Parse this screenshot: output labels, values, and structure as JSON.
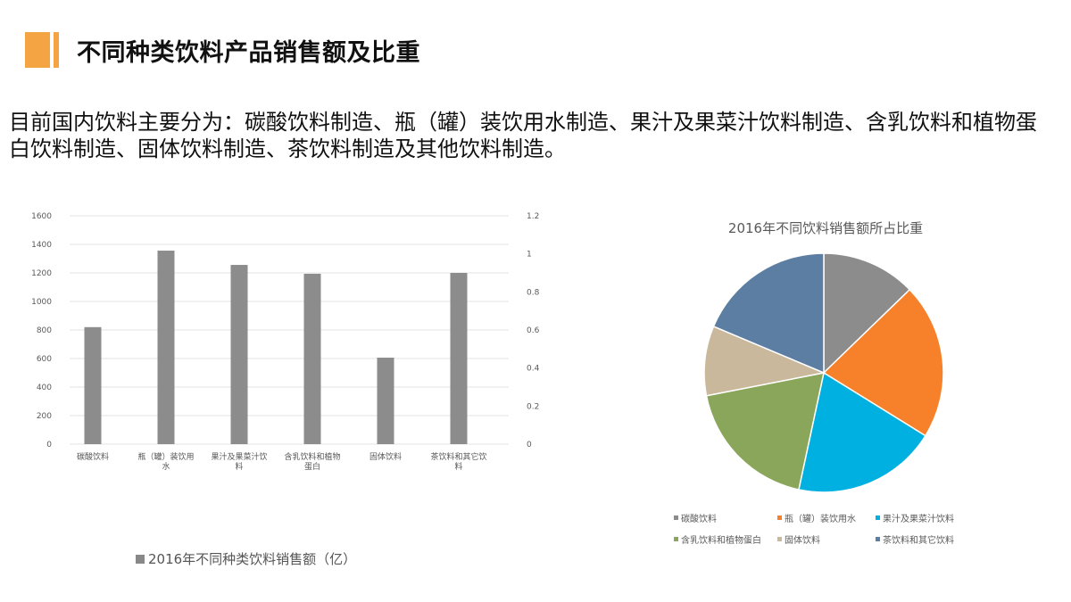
{
  "header": {
    "title": "不同种类饮料产品销售额及比重",
    "accent_color": "#f4a442"
  },
  "intro": {
    "text": "目前国内饮料主要分为：碳酸饮料制造、瓶（罐）装饮用水制造、果汁及果菜汁饮料制造、含乳饮料和植物蛋白饮料制造、固体饮料制造、茶饮料制造及其他饮料制造。"
  },
  "bar_legend": {
    "label": "2016年不同种类饮料销售额（亿）"
  },
  "pie_title": "2016年不同饮料销售额所占比重",
  "pie_legend": [
    {
      "label": "碳酸饮料",
      "color": "#8c8c8c"
    },
    {
      "label": "瓶（罐）装饮用水",
      "color": "#f7812a"
    },
    {
      "label": "果汁及果菜汁饮料",
      "color": "#00b0e0"
    },
    {
      "label": "含乳饮料和植物蛋白",
      "color": "#8aa65a"
    },
    {
      "label": "固体饮料",
      "color": "#c9b89b"
    },
    {
      "label": "茶饮料和其它饮料",
      "color": "#5c7ea3"
    }
  ],
  "chart_data": [
    {
      "type": "bar",
      "title": "",
      "categories": [
        "碳酸饮料",
        "瓶（罐）装饮用水",
        "果汁及果菜汁饮料",
        "含乳饮料和植物蛋白",
        "固体饮料",
        "茶饮料和其它饮料"
      ],
      "category_tick_lines": [
        [
          "碳酸饮料"
        ],
        [
          "瓶（罐）装饮用",
          "水"
        ],
        [
          "果汁及果菜汁饮",
          "料"
        ],
        [
          "含乳饮料和植物",
          "蛋白"
        ],
        [
          "固体饮料"
        ],
        [
          "茶饮料和其它饮",
          "料"
        ]
      ],
      "series": [
        {
          "name": "2016年不同种类饮料销售额（亿）",
          "values": [
            820,
            1356,
            1256,
            1194,
            606,
            1200
          ],
          "color": "#8c8c8c"
        }
      ],
      "xlabel": "",
      "ylabel": "",
      "ylim": [
        0,
        1600
      ],
      "yticks": [
        0,
        200,
        400,
        600,
        800,
        1000,
        1200,
        1400,
        1600
      ],
      "y2lim": [
        0,
        1.2
      ],
      "y2ticks": [
        "0",
        "0.2",
        "0.4",
        "0.6",
        "0.8",
        "1",
        "1.2"
      ],
      "grid": true,
      "legend_position": "bottom"
    },
    {
      "type": "pie",
      "title": "2016年不同饮料销售额所占比重",
      "categories": [
        "碳酸饮料",
        "瓶（罐）装饮用水",
        "果汁及果菜汁饮料",
        "含乳饮料和植物蛋白",
        "固体饮料",
        "茶饮料和其它饮料"
      ],
      "values": [
        820,
        1356,
        1256,
        1194,
        606,
        1200
      ],
      "colors": [
        "#8c8c8c",
        "#f7812a",
        "#00b0e0",
        "#8aa65a",
        "#c9b89b",
        "#5c7ea3"
      ],
      "legend_position": "bottom"
    }
  ]
}
